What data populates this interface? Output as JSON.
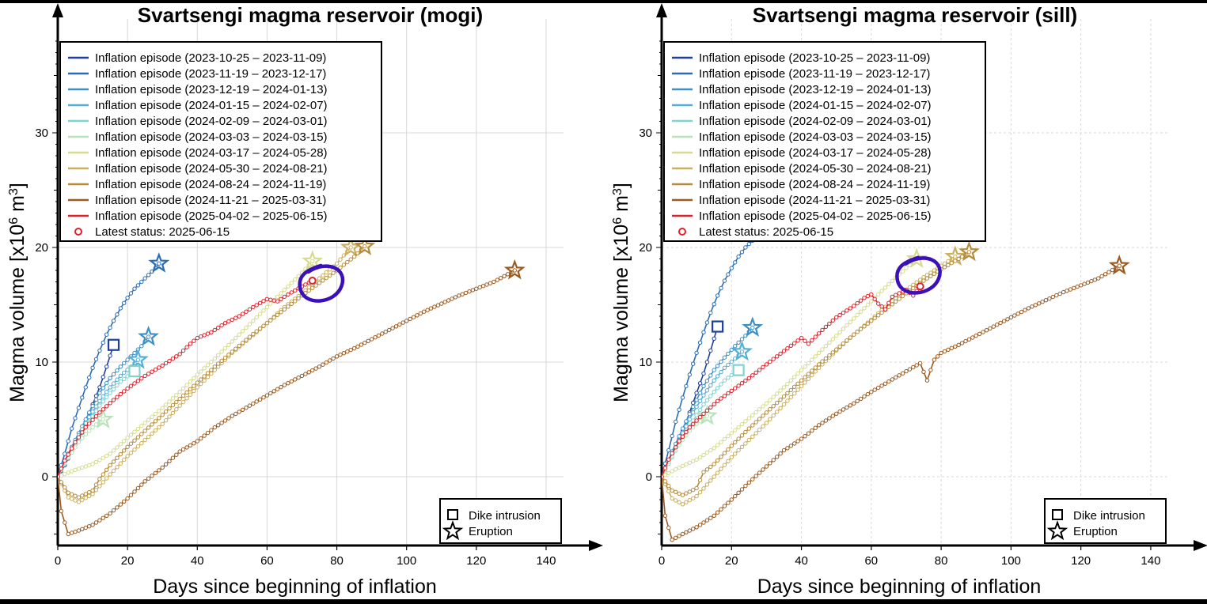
{
  "page": {
    "background": "#ffffff",
    "frame_color": "#000000"
  },
  "episodes": [
    {
      "name": "Inflation episode (2023-10-25 – 2023-11-09)",
      "color": "#1f3f9a"
    },
    {
      "name": "Inflation episode (2023-11-19 – 2023-12-17)",
      "color": "#2a6cb5"
    },
    {
      "name": "Inflation episode (2023-12-19 – 2024-01-13)",
      "color": "#3e8fc4"
    },
    {
      "name": "Inflation episode (2024-01-15 – 2024-02-07)",
      "color": "#52b0d6"
    },
    {
      "name": "Inflation episode (2024-02-09 – 2024-03-01)",
      "color": "#7fd3d0"
    },
    {
      "name": "Inflation episode (2024-03-03 – 2024-03-15)",
      "color": "#b8e3b8"
    },
    {
      "name": "Inflation episode (2024-03-17 – 2024-05-28)",
      "color": "#d5dc8f"
    },
    {
      "name": "Inflation episode (2024-05-30 – 2024-08-21)",
      "color": "#c9b05e"
    },
    {
      "name": "Inflation episode (2024-08-24 – 2024-11-19)",
      "color": "#b58c3c"
    },
    {
      "name": "Inflation episode (2024-11-21 – 2025-03-31)",
      "color": "#9a5a20"
    },
    {
      "name": "Inflation episode (2025-04-02 – 2025-06-15)",
      "color": "#e0202a"
    }
  ],
  "legend_latest": "Latest status: 2025-06-15",
  "marker_legend": {
    "dike": "Dike intrusion",
    "eruption": "Eruption"
  },
  "annotation_color": "#3a10b8",
  "chart_data": [
    {
      "type": "line",
      "title": "Svartsengi magma reservoir (mogi)",
      "xlabel": "Days since beginning of inflation",
      "ylabel_prefix": "Magma volume [x10",
      "ylabel_exp1": "6",
      "ylabel_mid": " m",
      "ylabel_exp2": "3",
      "ylabel_suffix": "]",
      "xlim": [
        0,
        145
      ],
      "ylim": [
        -6,
        40
      ],
      "xticks": [
        0,
        20,
        40,
        60,
        80,
        100,
        120,
        140
      ],
      "yticks": [
        0,
        10,
        20,
        30
      ],
      "grid": "solid",
      "legend_position": "top-left",
      "marker_legend_position": "bottom-right",
      "series": [
        {
          "name": "Inflation episode (2023-10-25 – 2023-11-09)",
          "color": "#1f3f9a",
          "x": [
            0,
            2,
            4,
            6,
            8,
            10,
            12,
            14,
            16
          ],
          "y": [
            0,
            1.0,
            2.2,
            3.4,
            4.8,
            6.3,
            7.8,
            9.6,
            11.5
          ],
          "end_marker": "square"
        },
        {
          "name": "Inflation episode (2023-11-19 – 2023-12-17)",
          "color": "#2a6cb5",
          "x": [
            0,
            2,
            4,
            6,
            8,
            10,
            12,
            14,
            16,
            18,
            20,
            22,
            24,
            26,
            28,
            29
          ],
          "y": [
            0,
            2.0,
            4.2,
            6.0,
            7.8,
            9.5,
            11.0,
            12.4,
            13.6,
            14.7,
            15.6,
            16.4,
            17.0,
            17.6,
            18.2,
            18.6
          ],
          "end_marker": "star"
        },
        {
          "name": "Inflation episode (2023-12-19 – 2024-01-13)",
          "color": "#3e8fc4",
          "x": [
            0,
            3,
            6,
            9,
            12,
            15,
            18,
            21,
            24,
            26
          ],
          "y": [
            0,
            2.0,
            3.8,
            5.6,
            7.3,
            8.6,
            9.6,
            10.5,
            11.4,
            12.2
          ],
          "end_marker": "star"
        },
        {
          "name": "Inflation episode (2024-01-15 – 2024-02-07)",
          "color": "#52b0d6",
          "x": [
            0,
            3,
            6,
            9,
            12,
            15,
            18,
            21,
            23
          ],
          "y": [
            0,
            1.8,
            3.6,
            5.2,
            6.6,
            7.8,
            8.8,
            9.6,
            10.2
          ],
          "end_marker": "star"
        },
        {
          "name": "Inflation episode (2024-02-09 – 2024-03-01)",
          "color": "#7fd3d0",
          "x": [
            0,
            3,
            6,
            9,
            12,
            15,
            18,
            21,
            22
          ],
          "y": [
            0,
            1.7,
            3.3,
            4.8,
            6.2,
            7.3,
            8.3,
            9.0,
            9.2
          ],
          "end_marker": "square"
        },
        {
          "name": "Inflation episode (2024-03-03 – 2024-03-15)",
          "color": "#b8e3b8",
          "x": [
            0,
            2,
            4,
            6,
            8,
            10,
            12,
            13
          ],
          "y": [
            0,
            1.2,
            2.1,
            3.0,
            3.7,
            4.3,
            4.8,
            5.0
          ],
          "end_marker": "star"
        },
        {
          "name": "Inflation episode (2024-03-17 – 2024-05-28)",
          "color": "#d5dc8f",
          "x": [
            0,
            5,
            10,
            15,
            20,
            25,
            30,
            35,
            40,
            45,
            50,
            55,
            60,
            65,
            70,
            73
          ],
          "y": [
            0,
            0.6,
            1.1,
            2.0,
            3.4,
            4.7,
            6.0,
            7.4,
            8.9,
            10.3,
            11.8,
            13.3,
            14.8,
            16.3,
            17.8,
            18.8
          ],
          "end_marker": "star"
        },
        {
          "name": "Inflation episode (2024-05-30 – 2024-08-21)",
          "color": "#c9b05e",
          "x": [
            0,
            3,
            6,
            10,
            15,
            20,
            25,
            30,
            35,
            40,
            45,
            50,
            55,
            60,
            65,
            70,
            75,
            80,
            84
          ],
          "y": [
            0,
            -1.8,
            -2.2,
            -1.5,
            0.2,
            1.8,
            3.2,
            4.6,
            6.2,
            7.8,
            9.3,
            10.8,
            12.1,
            13.4,
            14.8,
            16.0,
            17.3,
            18.6,
            20.0
          ],
          "end_marker": "star"
        },
        {
          "name": "Inflation episode (2024-08-24 – 2024-11-19)",
          "color": "#b58c3c",
          "x": [
            0,
            3,
            6,
            10,
            12,
            15,
            20,
            25,
            30,
            35,
            40,
            45,
            50,
            55,
            60,
            65,
            70,
            75,
            80,
            85,
            88
          ],
          "y": [
            0,
            -1.4,
            -1.8,
            -1.2,
            -0.2,
            1.0,
            2.6,
            4.0,
            5.4,
            6.8,
            8.2,
            9.6,
            10.9,
            12.2,
            13.4,
            14.6,
            15.8,
            16.9,
            18.0,
            19.2,
            20.1
          ],
          "end_marker": "star"
        },
        {
          "name": "Inflation episode (2024-11-21 – 2025-03-31)",
          "color": "#9a5a20",
          "x": [
            0,
            1,
            3,
            6,
            10,
            15,
            20,
            25,
            30,
            35,
            40,
            45,
            50,
            55,
            60,
            65,
            70,
            75,
            80,
            85,
            90,
            95,
            100,
            105,
            110,
            115,
            120,
            125,
            131
          ],
          "y": [
            0,
            -3.0,
            -5.0,
            -4.7,
            -4.2,
            -3.2,
            -1.9,
            -0.4,
            0.8,
            2.2,
            3.1,
            4.3,
            5.3,
            6.2,
            7.1,
            8.0,
            8.8,
            9.6,
            10.5,
            11.2,
            12.0,
            12.8,
            13.6,
            14.4,
            15.1,
            15.8,
            16.4,
            17.0,
            18.0
          ],
          "end_marker": "star"
        },
        {
          "name": "Inflation episode (2025-04-02 – 2025-06-15)",
          "color": "#e0202a",
          "x": [
            0,
            2,
            5,
            8,
            12,
            16,
            20,
            25,
            30,
            35,
            38,
            40,
            44,
            48,
            52,
            56,
            60,
            63,
            66,
            70,
            73
          ],
          "y": [
            0,
            1.4,
            3.0,
            4.3,
            5.6,
            6.7,
            7.7,
            8.8,
            9.7,
            10.7,
            11.6,
            12.1,
            12.6,
            13.4,
            14.0,
            14.8,
            15.5,
            15.3,
            15.9,
            16.6,
            17.1
          ],
          "end_marker": "circle"
        }
      ],
      "annotation_loop": {
        "x": 75,
        "y": 16.9
      }
    },
    {
      "type": "line",
      "title": "Svartsengi magma reservoir (sill)",
      "xlabel": "Days since beginning of inflation",
      "ylabel_prefix": "Magma volume [x10",
      "ylabel_exp1": "6",
      "ylabel_mid": " m",
      "ylabel_exp2": "3",
      "ylabel_suffix": "]",
      "xlim": [
        0,
        145
      ],
      "ylim": [
        -6,
        40
      ],
      "xticks": [
        0,
        20,
        40,
        60,
        80,
        100,
        120,
        140
      ],
      "yticks": [
        0,
        10,
        20,
        30
      ],
      "grid": "dashed",
      "legend_position": "top-left",
      "marker_legend_position": "bottom-right",
      "series": [
        {
          "name": "Inflation episode (2023-10-25 – 2023-11-09)",
          "color": "#1f3f9a",
          "x": [
            0,
            2,
            4,
            6,
            8,
            10,
            12,
            14,
            16
          ],
          "y": [
            0,
            1.2,
            2.6,
            4.0,
            5.6,
            7.3,
            9.0,
            11.0,
            13.1
          ],
          "end_marker": "square"
        },
        {
          "name": "Inflation episode (2023-11-19 – 2023-12-17)",
          "color": "#2a6cb5",
          "x": [
            0,
            2,
            4,
            6,
            8,
            10,
            12,
            14,
            16,
            18,
            20,
            22,
            24,
            26,
            28,
            29
          ],
          "y": [
            0,
            2.3,
            4.8,
            6.9,
            8.9,
            10.8,
            12.6,
            14.3,
            15.8,
            17.1,
            18.2,
            19.2,
            20.0,
            20.6,
            21.0,
            21.3
          ],
          "end_marker": "none"
        },
        {
          "name": "Inflation episode (2023-12-19 – 2024-01-13)",
          "color": "#3e8fc4",
          "x": [
            0,
            3,
            6,
            9,
            12,
            15,
            18,
            21,
            24,
            26
          ],
          "y": [
            0,
            2.2,
            4.2,
            6.1,
            7.9,
            9.3,
            10.4,
            11.4,
            12.3,
            13.0
          ],
          "end_marker": "star"
        },
        {
          "name": "Inflation episode (2024-01-15 – 2024-02-07)",
          "color": "#52b0d6",
          "x": [
            0,
            3,
            6,
            9,
            12,
            15,
            18,
            21,
            23
          ],
          "y": [
            0,
            1.9,
            3.8,
            5.6,
            7.1,
            8.4,
            9.5,
            10.3,
            10.9
          ],
          "end_marker": "star"
        },
        {
          "name": "Inflation episode (2024-02-09 – 2024-03-01)",
          "color": "#7fd3d0",
          "x": [
            0,
            3,
            6,
            9,
            12,
            15,
            18,
            21,
            22
          ],
          "y": [
            0,
            1.7,
            3.4,
            4.9,
            6.3,
            7.4,
            8.4,
            9.1,
            9.3
          ],
          "end_marker": "square"
        },
        {
          "name": "Inflation episode (2024-03-03 – 2024-03-15)",
          "color": "#b8e3b8",
          "x": [
            0,
            2,
            4,
            6,
            8,
            10,
            12,
            13
          ],
          "y": [
            0,
            1.3,
            2.3,
            3.2,
            4.0,
            4.6,
            5.1,
            5.3
          ],
          "end_marker": "star"
        },
        {
          "name": "Inflation episode (2024-03-17 – 2024-05-28)",
          "color": "#d5dc8f",
          "x": [
            0,
            5,
            10,
            15,
            20,
            25,
            30,
            35,
            40,
            45,
            50,
            55,
            60,
            65,
            70,
            73
          ],
          "y": [
            0,
            0.8,
            1.5,
            2.5,
            3.8,
            5.1,
            6.4,
            7.8,
            9.3,
            10.8,
            12.3,
            13.8,
            15.3,
            16.8,
            18.2,
            19.0
          ],
          "end_marker": "star"
        },
        {
          "name": "Inflation episode (2024-05-30 – 2024-08-21)",
          "color": "#c9b05e",
          "x": [
            0,
            3,
            6,
            10,
            15,
            20,
            25,
            30,
            35,
            40,
            45,
            50,
            55,
            60,
            65,
            70,
            75,
            80,
            84
          ],
          "y": [
            0,
            -1.9,
            -2.4,
            -1.7,
            0.0,
            1.7,
            3.2,
            4.7,
            6.3,
            7.9,
            9.5,
            11.0,
            12.4,
            13.7,
            15.1,
            16.3,
            17.4,
            18.4,
            19.2
          ],
          "end_marker": "star"
        },
        {
          "name": "Inflation episode (2024-08-24 – 2024-11-19)",
          "color": "#b58c3c",
          "x": [
            0,
            3,
            6,
            10,
            12,
            15,
            20,
            25,
            30,
            35,
            40,
            45,
            50,
            55,
            60,
            65,
            70,
            75,
            80,
            85,
            88
          ],
          "y": [
            0,
            -1.2,
            -1.6,
            -1.0,
            0.4,
            1.1,
            2.7,
            4.2,
            5.6,
            7.0,
            8.4,
            9.8,
            11.1,
            12.4,
            13.6,
            14.8,
            16.0,
            17.1,
            18.1,
            19.0,
            19.6
          ],
          "end_marker": "star"
        },
        {
          "name": "Inflation episode (2024-11-21 – 2025-03-31)",
          "color": "#9a5a20",
          "x": [
            0,
            1,
            3,
            6,
            10,
            15,
            20,
            25,
            30,
            35,
            40,
            45,
            50,
            55,
            60,
            65,
            70,
            74,
            76,
            78,
            80,
            85,
            90,
            95,
            100,
            105,
            110,
            115,
            120,
            125,
            131
          ],
          "y": [
            0,
            -3.4,
            -5.5,
            -5.0,
            -4.4,
            -3.4,
            -2.0,
            -0.5,
            0.9,
            2.3,
            3.3,
            4.5,
            5.5,
            6.4,
            7.4,
            8.3,
            9.2,
            9.9,
            8.4,
            10.2,
            10.8,
            11.5,
            12.3,
            13.1,
            13.9,
            14.7,
            15.4,
            16.1,
            16.7,
            17.3,
            18.4
          ],
          "end_marker": "star"
        },
        {
          "name": "Inflation episode (2025-04-02 – 2025-06-15)",
          "color": "#e0202a",
          "x": [
            0,
            2,
            5,
            8,
            12,
            16,
            20,
            25,
            30,
            33,
            36,
            40,
            42,
            46,
            50,
            55,
            58,
            60,
            62,
            64,
            66,
            70,
            72,
            74
          ],
          "y": [
            0,
            1.5,
            3.1,
            4.3,
            5.5,
            6.6,
            7.5,
            8.6,
            9.8,
            10.5,
            11.2,
            12.1,
            11.6,
            12.8,
            13.9,
            14.9,
            15.6,
            15.9,
            15.1,
            14.6,
            15.7,
            16.3,
            15.8,
            16.6
          ],
          "end_marker": "circle"
        }
      ],
      "annotation_loop": {
        "x": 73,
        "y": 17.6
      }
    }
  ]
}
